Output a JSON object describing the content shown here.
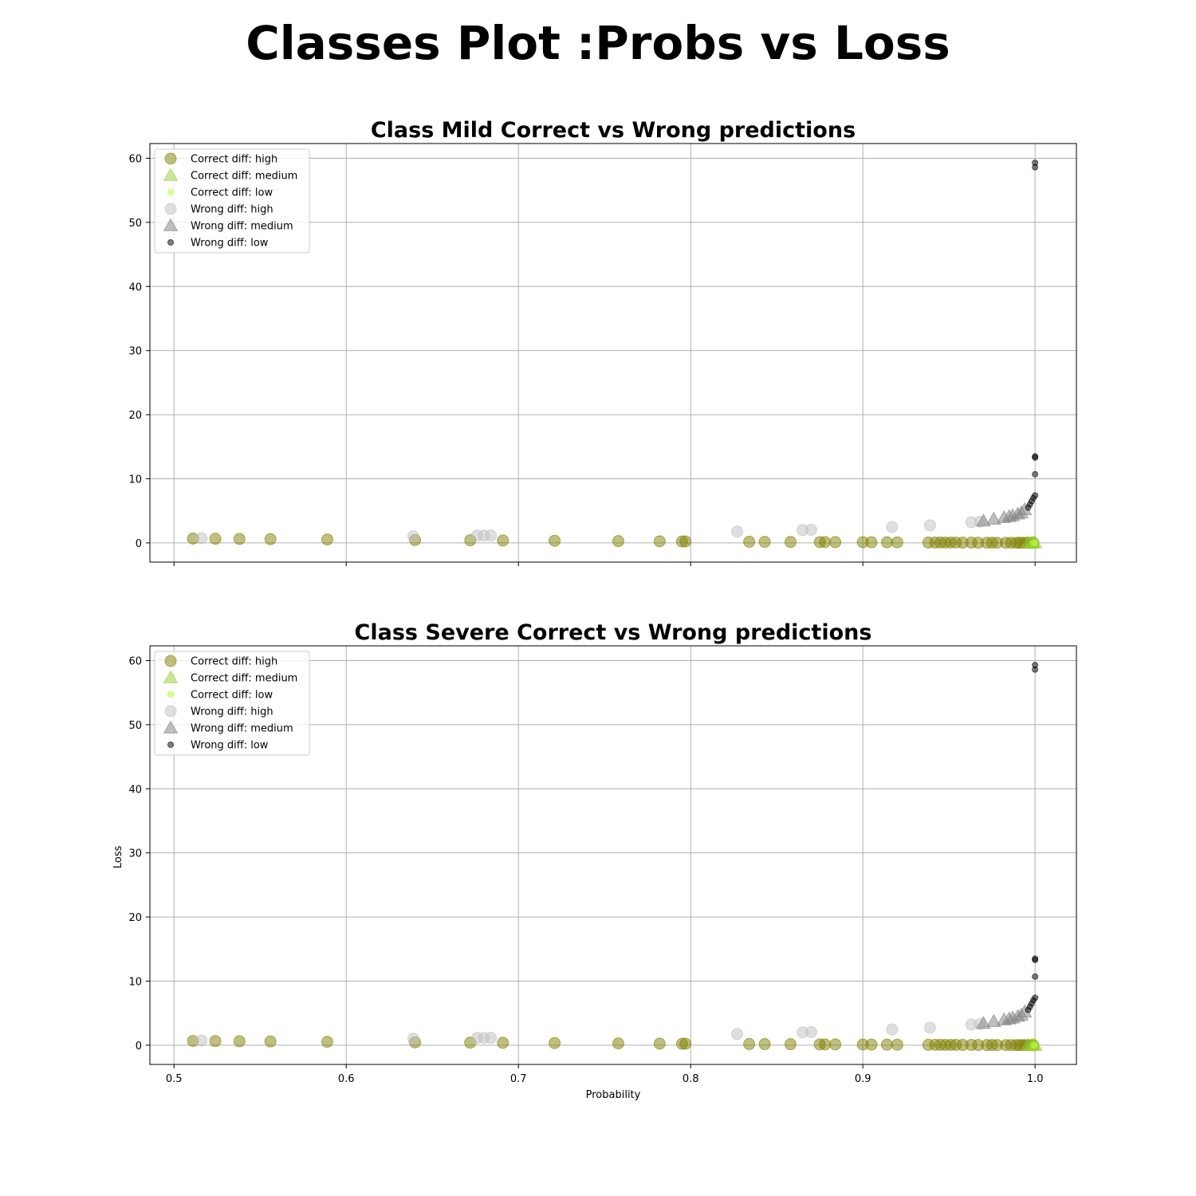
{
  "figure": {
    "title": "Classes Plot :Probs vs Loss"
  },
  "colors": {
    "correct_high": "#808000",
    "correct_medium": "#9acd32",
    "correct_low": "#adff2f",
    "wrong_high": "#c0c0c0",
    "wrong_medium": "#808080",
    "wrong_low": "#000000",
    "grid": "#b0b0b0"
  },
  "chart_data": [
    {
      "type": "scatter",
      "title": "Class Mild Correct vs Wrong predictions",
      "xlabel": "",
      "ylabel": "",
      "xlim": [
        0.486,
        1.024
      ],
      "ylim": [
        -3,
        62.3
      ],
      "xticks": [
        0.5,
        0.6,
        0.7,
        0.8,
        0.9,
        1.0
      ],
      "yticks": [
        0,
        10,
        20,
        30,
        40,
        50,
        60
      ],
      "show_xtick_labels": false,
      "grid": true,
      "legend": "top-left",
      "series": [
        {
          "name": "Correct diff: high",
          "color_key": "correct_high",
          "marker": "circle-large",
          "points": [
            [
              0.511,
              0.67
            ],
            [
              0.524,
              0.65
            ],
            [
              0.538,
              0.62
            ],
            [
              0.556,
              0.59
            ],
            [
              0.589,
              0.53
            ],
            [
              0.64,
              0.45
            ],
            [
              0.672,
              0.4
            ],
            [
              0.691,
              0.37
            ],
            [
              0.721,
              0.33
            ],
            [
              0.758,
              0.28
            ],
            [
              0.782,
              0.25
            ],
            [
              0.795,
              0.23
            ],
            [
              0.797,
              0.23
            ],
            [
              0.834,
              0.18
            ],
            [
              0.843,
              0.17
            ],
            [
              0.858,
              0.15
            ],
            [
              0.875,
              0.13
            ],
            [
              0.878,
              0.13
            ],
            [
              0.884,
              0.12
            ],
            [
              0.9,
              0.11
            ],
            [
              0.905,
              0.1
            ],
            [
              0.914,
              0.09
            ],
            [
              0.92,
              0.08
            ],
            [
              0.938,
              0.06
            ],
            [
              0.942,
              0.06
            ],
            [
              0.945,
              0.06
            ],
            [
              0.948,
              0.05
            ],
            [
              0.951,
              0.05
            ],
            [
              0.954,
              0.05
            ],
            [
              0.958,
              0.04
            ],
            [
              0.963,
              0.04
            ],
            [
              0.967,
              0.03
            ],
            [
              0.972,
              0.03
            ],
            [
              0.975,
              0.03
            ],
            [
              0.978,
              0.02
            ],
            [
              0.983,
              0.02
            ],
            [
              0.986,
              0.02
            ],
            [
              0.989,
              0.01
            ],
            [
              0.991,
              0.01
            ],
            [
              0.993,
              0.01
            ],
            [
              0.995,
              0.01
            ],
            [
              0.997,
              0.0
            ],
            [
              0.999,
              0.0
            ]
          ]
        },
        {
          "name": "Correct diff: medium",
          "color_key": "correct_medium",
          "marker": "triangle",
          "points": [
            [
              0.996,
              0.0
            ],
            [
              0.998,
              0.0
            ],
            [
              0.999,
              0.0
            ],
            [
              1.0,
              0.0
            ]
          ]
        },
        {
          "name": "Correct diff: low",
          "color_key": "correct_low",
          "marker": "circle-small",
          "points": [
            [
              0.999,
              0.0
            ],
            [
              1.0,
              0.0
            ]
          ]
        },
        {
          "name": "Wrong diff: high",
          "color_key": "wrong_high",
          "marker": "circle-large",
          "points": [
            [
              0.516,
              0.73
            ],
            [
              0.639,
              1.02
            ],
            [
              0.676,
              1.13
            ],
            [
              0.68,
              1.14
            ],
            [
              0.684,
              1.15
            ],
            [
              0.827,
              1.75
            ],
            [
              0.865,
              2.0
            ],
            [
              0.87,
              2.04
            ],
            [
              0.917,
              2.48
            ],
            [
              0.939,
              2.74
            ],
            [
              0.963,
              3.23
            ],
            [
              0.968,
              3.3
            ]
          ]
        },
        {
          "name": "Wrong diff: medium",
          "color_key": "wrong_medium",
          "marker": "triangle",
          "points": [
            [
              0.97,
              3.4
            ],
            [
              0.976,
              3.7
            ],
            [
              0.982,
              3.95
            ],
            [
              0.985,
              4.1
            ],
            [
              0.987,
              4.25
            ],
            [
              0.99,
              4.5
            ],
            [
              0.992,
              4.7
            ],
            [
              0.994,
              5.2
            ]
          ]
        },
        {
          "name": "Wrong diff: low",
          "color_key": "wrong_low",
          "marker": "circle-small",
          "points": [
            [
              0.996,
              5.5
            ],
            [
              0.997,
              6.0
            ],
            [
              0.998,
              6.5
            ],
            [
              0.999,
              7.0
            ],
            [
              1.0,
              7.4
            ],
            [
              1.0,
              10.7
            ],
            [
              1.0,
              13.3
            ],
            [
              1.0,
              13.5
            ],
            [
              1.0,
              58.6
            ],
            [
              1.0,
              59.3
            ]
          ]
        }
      ]
    },
    {
      "type": "scatter",
      "title": "Class Severe Correct vs Wrong predictions",
      "xlabel": "Probability",
      "ylabel": "Loss",
      "xlim": [
        0.486,
        1.024
      ],
      "ylim": [
        -3,
        62.3
      ],
      "xticks": [
        0.5,
        0.6,
        0.7,
        0.8,
        0.9,
        1.0
      ],
      "yticks": [
        0,
        10,
        20,
        30,
        40,
        50,
        60
      ],
      "show_xtick_labels": true,
      "grid": true,
      "legend": "top-left",
      "series": [
        {
          "name": "Correct diff: high",
          "color_key": "correct_high",
          "marker": "circle-large",
          "points": [
            [
              0.511,
              0.67
            ],
            [
              0.524,
              0.65
            ],
            [
              0.538,
              0.62
            ],
            [
              0.556,
              0.59
            ],
            [
              0.589,
              0.53
            ],
            [
              0.64,
              0.45
            ],
            [
              0.672,
              0.4
            ],
            [
              0.691,
              0.37
            ],
            [
              0.721,
              0.33
            ],
            [
              0.758,
              0.28
            ],
            [
              0.782,
              0.25
            ],
            [
              0.795,
              0.23
            ],
            [
              0.797,
              0.23
            ],
            [
              0.834,
              0.18
            ],
            [
              0.843,
              0.17
            ],
            [
              0.858,
              0.15
            ],
            [
              0.875,
              0.13
            ],
            [
              0.878,
              0.13
            ],
            [
              0.884,
              0.12
            ],
            [
              0.9,
              0.11
            ],
            [
              0.905,
              0.1
            ],
            [
              0.914,
              0.09
            ],
            [
              0.92,
              0.08
            ],
            [
              0.938,
              0.06
            ],
            [
              0.942,
              0.06
            ],
            [
              0.945,
              0.06
            ],
            [
              0.948,
              0.05
            ],
            [
              0.951,
              0.05
            ],
            [
              0.954,
              0.05
            ],
            [
              0.958,
              0.04
            ],
            [
              0.963,
              0.04
            ],
            [
              0.967,
              0.03
            ],
            [
              0.972,
              0.03
            ],
            [
              0.975,
              0.03
            ],
            [
              0.978,
              0.02
            ],
            [
              0.983,
              0.02
            ],
            [
              0.986,
              0.02
            ],
            [
              0.989,
              0.01
            ],
            [
              0.991,
              0.01
            ],
            [
              0.993,
              0.01
            ],
            [
              0.995,
              0.01
            ],
            [
              0.997,
              0.0
            ],
            [
              0.999,
              0.0
            ]
          ]
        },
        {
          "name": "Correct diff: medium",
          "color_key": "correct_medium",
          "marker": "triangle",
          "points": [
            [
              0.996,
              0.0
            ],
            [
              0.998,
              0.0
            ],
            [
              0.999,
              0.0
            ],
            [
              1.0,
              0.0
            ]
          ]
        },
        {
          "name": "Correct diff: low",
          "color_key": "correct_low",
          "marker": "circle-small",
          "points": [
            [
              0.999,
              0.0
            ],
            [
              1.0,
              0.0
            ]
          ]
        },
        {
          "name": "Wrong diff: high",
          "color_key": "wrong_high",
          "marker": "circle-large",
          "points": [
            [
              0.516,
              0.73
            ],
            [
              0.639,
              1.02
            ],
            [
              0.676,
              1.13
            ],
            [
              0.68,
              1.14
            ],
            [
              0.684,
              1.15
            ],
            [
              0.827,
              1.75
            ],
            [
              0.865,
              2.0
            ],
            [
              0.87,
              2.04
            ],
            [
              0.917,
              2.48
            ],
            [
              0.939,
              2.74
            ],
            [
              0.963,
              3.23
            ],
            [
              0.968,
              3.3
            ]
          ]
        },
        {
          "name": "Wrong diff: medium",
          "color_key": "wrong_medium",
          "marker": "triangle",
          "points": [
            [
              0.97,
              3.4
            ],
            [
              0.976,
              3.7
            ],
            [
              0.982,
              3.95
            ],
            [
              0.985,
              4.1
            ],
            [
              0.987,
              4.25
            ],
            [
              0.99,
              4.5
            ],
            [
              0.992,
              4.7
            ],
            [
              0.994,
              5.2
            ]
          ]
        },
        {
          "name": "Wrong diff: low",
          "color_key": "wrong_low",
          "marker": "circle-small",
          "points": [
            [
              0.996,
              5.5
            ],
            [
              0.997,
              6.0
            ],
            [
              0.998,
              6.5
            ],
            [
              0.999,
              7.0
            ],
            [
              1.0,
              7.4
            ],
            [
              1.0,
              10.7
            ],
            [
              1.0,
              13.3
            ],
            [
              1.0,
              13.5
            ],
            [
              1.0,
              58.6
            ],
            [
              1.0,
              59.3
            ]
          ]
        }
      ]
    }
  ]
}
